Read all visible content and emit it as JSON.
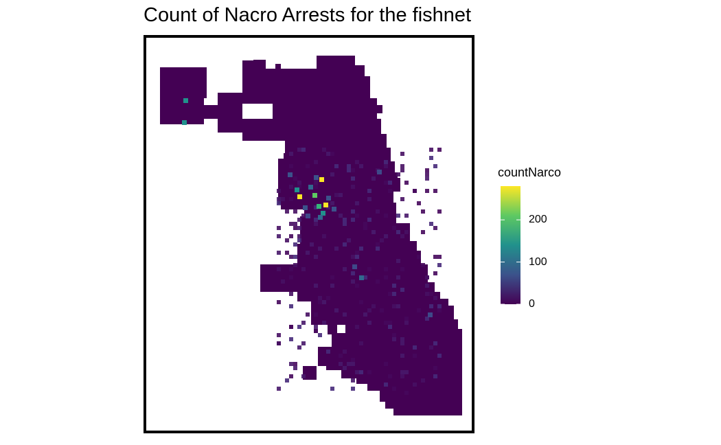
{
  "map": {
    "title": "Count of Nacro Arrests for the fishnet",
    "region_fill": "#440154",
    "palette": "viridis"
  },
  "legend": {
    "title": "countNarco",
    "min": 0,
    "max": 280,
    "ticks": [
      {
        "value": 0,
        "label": "0"
      },
      {
        "value": 100,
        "label": "100"
      },
      {
        "value": 200,
        "label": "200"
      }
    ],
    "colors": [
      "#440154",
      "#3b528b",
      "#21918c",
      "#5ec962",
      "#fde725"
    ]
  }
}
